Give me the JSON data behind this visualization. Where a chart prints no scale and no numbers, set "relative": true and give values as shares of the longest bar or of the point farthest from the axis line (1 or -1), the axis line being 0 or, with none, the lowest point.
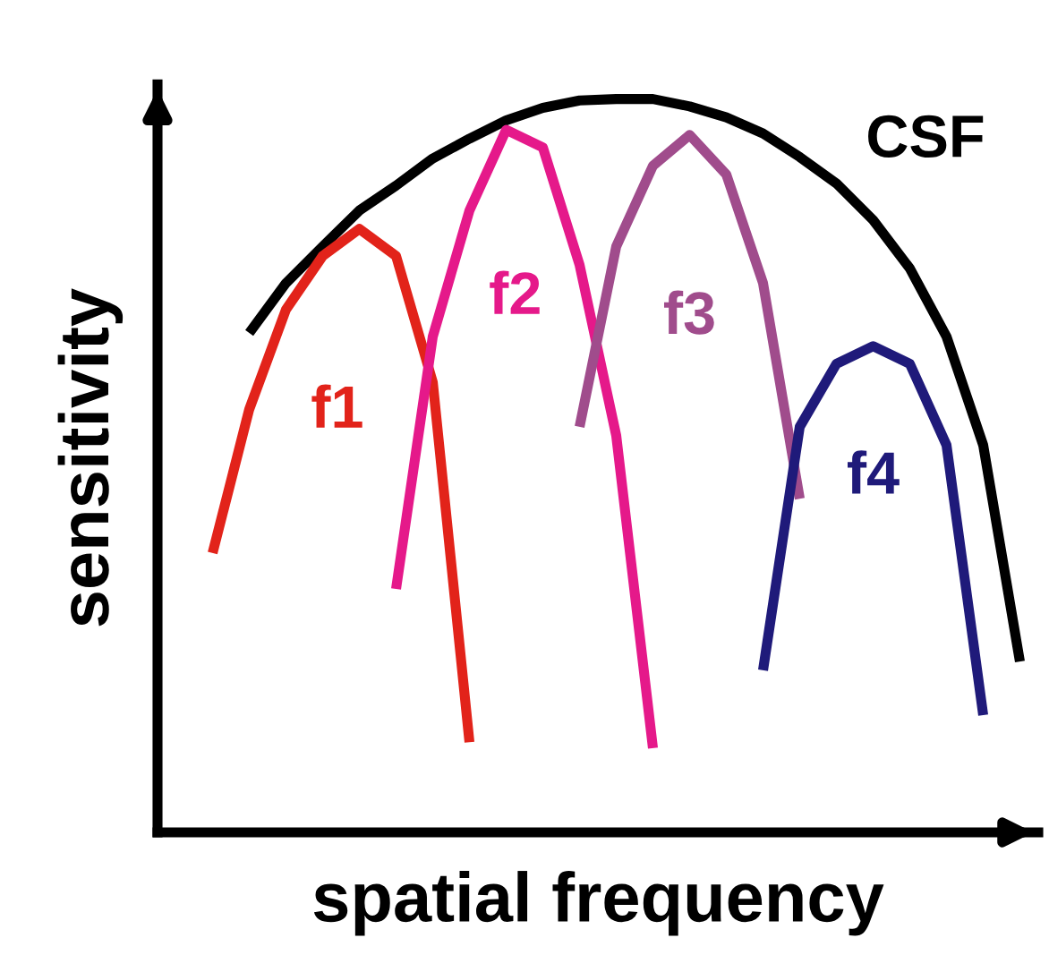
{
  "chart_data": {
    "type": "line",
    "relative": true,
    "xlabel": "spatial frequency",
    "ylabel": "sensitivity",
    "line_style": "solid",
    "categories": [
      null,
      null,
      null,
      null,
      null,
      null,
      null,
      null,
      null,
      null,
      null,
      null,
      null,
      null,
      null,
      null,
      null,
      null,
      null,
      null,
      null,
      null,
      null,
      null
    ],
    "series": [
      {
        "name": "CSF",
        "color": "#000000",
        "values": [
          null,
          null,
          0.681,
          0.749,
          0.799,
          0.848,
          0.882,
          0.919,
          0.946,
          0.971,
          0.988,
          0.998,
          1.0,
          1.0,
          0.99,
          0.975,
          0.953,
          0.921,
          0.885,
          0.835,
          0.769,
          0.676,
          0.528,
          0.233
        ]
      },
      {
        "name": "f1",
        "color": "#e2231a",
        "values": [
          null,
          0.381,
          0.577,
          0.713,
          0.786,
          0.823,
          0.786,
          0.614,
          0.123,
          null,
          null,
          null,
          null,
          null,
          null,
          null,
          null,
          null,
          null,
          null,
          null,
          null,
          null,
          null
        ]
      },
      {
        "name": "f2",
        "color": "#e5198a",
        "values": [
          null,
          null,
          null,
          null,
          null,
          null,
          0.332,
          0.676,
          0.848,
          0.958,
          0.934,
          0.774,
          0.541,
          0.115,
          null,
          null,
          null,
          null,
          null,
          null,
          null,
          null,
          null,
          null
        ]
      },
      {
        "name": "f3",
        "color": "#a04c8c",
        "values": [
          null,
          null,
          null,
          null,
          null,
          null,
          null,
          null,
          null,
          null,
          null,
          0.553,
          0.799,
          0.909,
          0.951,
          0.897,
          0.749,
          0.455,
          null,
          null,
          null,
          null,
          null,
          null
        ]
      },
      {
        "name": "f4",
        "color": "#1f1a7a",
        "values": [
          null,
          null,
          null,
          null,
          null,
          null,
          null,
          null,
          null,
          null,
          null,
          null,
          null,
          null,
          null,
          null,
          0.221,
          0.553,
          0.639,
          0.663,
          0.639,
          0.528,
          0.16,
          null
        ]
      }
    ]
  }
}
